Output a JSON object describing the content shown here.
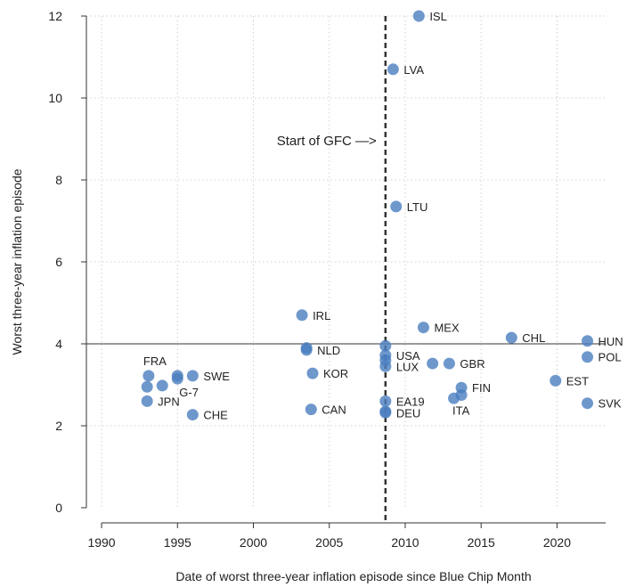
{
  "chart_data": {
    "type": "scatter",
    "xlabel": "Date of worst three-year inflation episode since Blue Chip Month",
    "ylabel": "Worst  three-year inflation episode",
    "xlim": [
      1989,
      2023.2
    ],
    "ylim": [
      0,
      12
    ],
    "xticks": [
      1990,
      1995,
      2000,
      2005,
      2010,
      2015,
      2020
    ],
    "yticks": [
      0,
      2,
      4,
      6,
      8,
      10,
      12
    ],
    "grid": true,
    "reference_line_y": 4,
    "gfc_line_x": 2008.7,
    "annotation": "Start of GFC —>",
    "point_color": "#4a7ebf",
    "points": [
      {
        "x": 2010.9,
        "y": 12.0,
        "label": "ISL"
      },
      {
        "x": 2009.2,
        "y": 10.7,
        "label": "LVA"
      },
      {
        "x": 2009.4,
        "y": 7.35,
        "label": "LTU"
      },
      {
        "x": 2003.2,
        "y": 4.7,
        "label": "IRL"
      },
      {
        "x": 2011.2,
        "y": 4.4,
        "label": "MEX"
      },
      {
        "x": 2017.0,
        "y": 4.15,
        "label": "CHL"
      },
      {
        "x": 2022.0,
        "y": 4.07,
        "label": "HUN"
      },
      {
        "x": 2022.0,
        "y": 3.68,
        "label": "POL"
      },
      {
        "x": 2003.5,
        "y": 3.9,
        "label": ""
      },
      {
        "x": 2003.5,
        "y": 3.85,
        "label": "NLD"
      },
      {
        "x": 2008.7,
        "y": 3.95,
        "label": ""
      },
      {
        "x": 2008.7,
        "y": 3.72,
        "label": "USA"
      },
      {
        "x": 2008.7,
        "y": 3.6,
        "label": ""
      },
      {
        "x": 2008.7,
        "y": 3.45,
        "label": "LUX"
      },
      {
        "x": 2011.8,
        "y": 3.52,
        "label": ""
      },
      {
        "x": 2012.9,
        "y": 3.52,
        "label": "GBR"
      },
      {
        "x": 2003.9,
        "y": 3.28,
        "label": "KOR"
      },
      {
        "x": 2019.9,
        "y": 3.1,
        "label": "EST"
      },
      {
        "x": 2013.7,
        "y": 2.93,
        "label": "FIN"
      },
      {
        "x": 2013.2,
        "y": 2.67,
        "label": ""
      },
      {
        "x": 2013.7,
        "y": 2.75,
        "label": "ITA"
      },
      {
        "x": 2008.7,
        "y": 2.6,
        "label": "EA19"
      },
      {
        "x": 2003.8,
        "y": 2.4,
        "label": "CAN"
      },
      {
        "x": 2008.7,
        "y": 2.35,
        "label": ""
      },
      {
        "x": 2008.7,
        "y": 2.32,
        "label": "DEU"
      },
      {
        "x": 2022.0,
        "y": 2.55,
        "label": "SVK"
      },
      {
        "x": 1993.1,
        "y": 3.22,
        "label": "FRA"
      },
      {
        "x": 1993.0,
        "y": 2.95,
        "label": ""
      },
      {
        "x": 1994.0,
        "y": 2.98,
        "label": ""
      },
      {
        "x": 1995.0,
        "y": 3.22,
        "label": ""
      },
      {
        "x": 1995.0,
        "y": 3.15,
        "label": "G-7"
      },
      {
        "x": 1996.0,
        "y": 3.22,
        "label": "SWE"
      },
      {
        "x": 1993.0,
        "y": 2.6,
        "label": "JPN"
      },
      {
        "x": 1996.0,
        "y": 2.27,
        "label": "CHE"
      }
    ]
  }
}
